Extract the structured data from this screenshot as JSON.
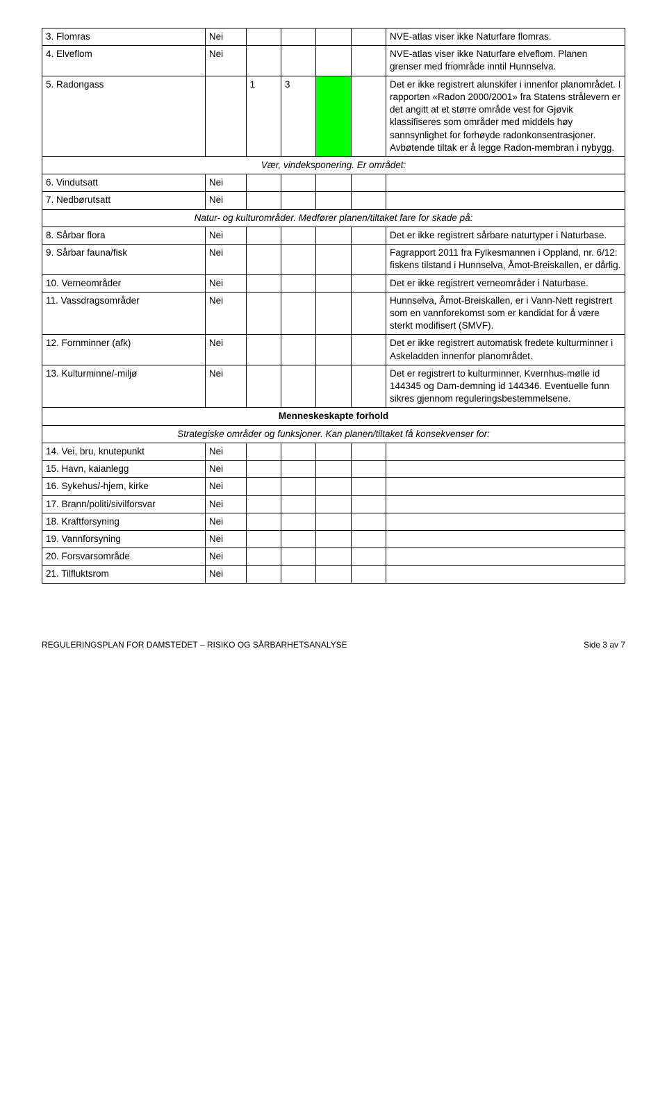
{
  "colors": {
    "highlight": "#00ff00",
    "border": "#000000",
    "text": "#000000",
    "bg": "#ffffff"
  },
  "rows": {
    "r3": {
      "num": "3.",
      "label": "Flomras",
      "val": "Nei",
      "comment": "NVE-atlas viser ikke Naturfare flomras."
    },
    "r4": {
      "num": "4.",
      "label": "Elveflom",
      "val": "Nei",
      "comment": "NVE-atlas viser ikke Naturfare elveflom. Planen grenser med friområde inntil Hunnselva."
    },
    "r5": {
      "num": "5.",
      "label": "Radongass",
      "c1": "1",
      "c2": "3",
      "comment": "Det er ikke registrert alunskifer i innenfor planområdet. I rapporten «Radon 2000/2001» fra Statens strålevern er det angitt at et større område vest for Gjøvik klassifiseres som områder med middels høy sannsynlighet for forhøyde radonkonsentrasjoner. Avbøtende tiltak er å legge Radon-membran i nybygg."
    },
    "sec1": "Vær, vindeksponering. Er området:",
    "r6": {
      "num": "6.",
      "label": "Vindutsatt",
      "val": "Nei"
    },
    "r7": {
      "num": "7.",
      "label": "Nedbørutsatt",
      "val": "Nei"
    },
    "sec2": "Natur- og kulturområder. Medfører planen/tiltaket fare for skade på:",
    "r8": {
      "num": "8.",
      "label": "Sårbar flora",
      "val": "Nei",
      "comment": "Det er ikke registrert sårbare naturtyper i Naturbase."
    },
    "r9": {
      "num": "9.",
      "label": "Sårbar fauna/fisk",
      "val": "Nei",
      "comment": "Fagrapport 2011 fra Fylkesmannen i Oppland, nr. 6/12: fiskens tilstand i Hunnselva, Åmot-Breiskallen, er dårlig."
    },
    "r10": {
      "num": "10.",
      "label": "Verneområder",
      "val": "Nei",
      "comment": "Det er ikke registrert verneområder i Naturbase."
    },
    "r11": {
      "num": "11.",
      "label": "Vassdragsområder",
      "val": "Nei",
      "comment": "Hunnselva, Åmot-Breiskallen, er i Vann-Nett registrert som en vannforekomst som er kandidat for å være sterkt modifisert (SMVF)."
    },
    "r12": {
      "num": "12.",
      "label": "Fornminner (afk)",
      "val": "Nei",
      "comment": "Det er ikke registrert automatisk fredete kulturminner i Askeladden innenfor planområdet."
    },
    "r13": {
      "num": "13.",
      "label": "Kulturminne/-miljø",
      "val": "Nei",
      "comment": "Det er registrert to kulturminner, Kvernhus-mølle id 144345 og Dam-demning id 144346. Eventuelle funn sikres gjennom reguleringsbestemmelsene."
    },
    "sec3": "Menneskeskapte forhold",
    "sec4": "Strategiske områder og funksjoner. Kan planen/tiltaket få konsekvenser for:",
    "r14": {
      "num": "14.",
      "label": "Vei, bru, knutepunkt",
      "val": "Nei"
    },
    "r15": {
      "num": "15.",
      "label": "Havn, kaianlegg",
      "val": "Nei"
    },
    "r16": {
      "num": "16.",
      "label": "Sykehus/-hjem, kirke",
      "val": "Nei"
    },
    "r17": {
      "num": "17.",
      "label": "Brann/politi/sivilforsvar",
      "val": "Nei"
    },
    "r18": {
      "num": "18.",
      "label": "Kraftforsyning",
      "val": "Nei"
    },
    "r19": {
      "num": "19.",
      "label": "Vannforsyning",
      "val": "Nei"
    },
    "r20": {
      "num": "20.",
      "label": "Forsvarsområde",
      "val": "Nei"
    },
    "r21": {
      "num": "21.",
      "label": "Tilfluktsrom",
      "val": "Nei"
    }
  },
  "footer": {
    "left": "REGULERINGSPLAN FOR DAMSTEDET – RISIKO OG SÅRBARHETSANALYSE",
    "right": "Side 3 av 7"
  }
}
